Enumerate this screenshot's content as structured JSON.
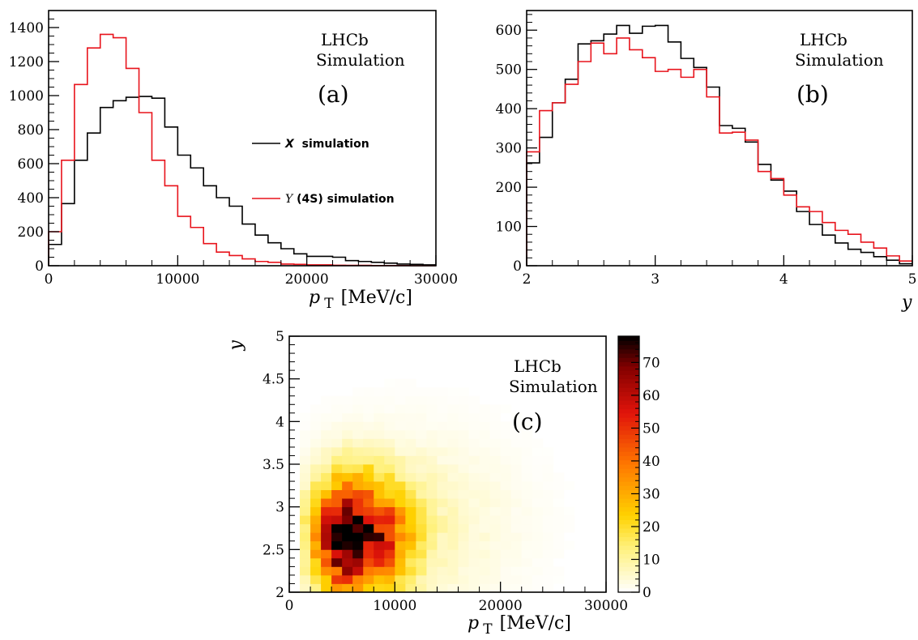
{
  "chart_data": [
    {
      "panel_id": "a",
      "type": "step-histogram",
      "xlabel": "p",
      "xlabel_sub": "T",
      "xlabel_unit": "[MeV/c]",
      "xlim": [
        0,
        30000
      ],
      "ylim": [
        0,
        1500
      ],
      "x_ticks": [
        0,
        10000,
        20000,
        30000
      ],
      "y_ticks": [
        0,
        200,
        400,
        600,
        800,
        1000,
        1200,
        1400
      ],
      "bin_edges": [
        0,
        1000,
        2000,
        3000,
        4000,
        5000,
        6000,
        7000,
        8000,
        9000,
        10000,
        11000,
        12000,
        13000,
        14000,
        15000,
        16000,
        17000,
        18000,
        19000,
        20000,
        21000,
        22000,
        23000,
        24000,
        25000,
        26000,
        27000,
        28000,
        29000,
        30000
      ],
      "annotation_lines": [
        "LHCb",
        "Simulation"
      ],
      "panel_label": "(a)",
      "series": [
        {
          "legend_symbol": "X",
          "legend_text": "simulation",
          "color": "#000000",
          "values": [
            125,
            365,
            620,
            780,
            930,
            970,
            990,
            995,
            985,
            815,
            650,
            575,
            470,
            400,
            350,
            245,
            180,
            135,
            100,
            70,
            55,
            55,
            50,
            30,
            25,
            20,
            15,
            10,
            8,
            5
          ]
        },
        {
          "legend_symbol": "Y",
          "legend_text": "(4S) simulation",
          "color": "#e8141c",
          "values": [
            200,
            620,
            1065,
            1280,
            1360,
            1340,
            1160,
            900,
            620,
            470,
            290,
            225,
            130,
            80,
            60,
            40,
            25,
            20,
            10,
            8,
            5,
            5,
            3,
            2,
            2,
            1,
            1,
            1,
            0,
            0
          ]
        }
      ],
      "legend_placement": "right-middle"
    },
    {
      "panel_id": "b",
      "type": "step-histogram",
      "xlabel": "y",
      "xlim": [
        2,
        5
      ],
      "ylim": [
        0,
        650
      ],
      "x_ticks": [
        2,
        3,
        4,
        5
      ],
      "y_ticks": [
        0,
        100,
        200,
        300,
        400,
        500,
        600
      ],
      "bin_edges": [
        2.0,
        2.1,
        2.2,
        2.3,
        2.4,
        2.5,
        2.6,
        2.7,
        2.8,
        2.9,
        3.0,
        3.1,
        3.2,
        3.3,
        3.4,
        3.5,
        3.6,
        3.7,
        3.8,
        3.9,
        4.0,
        4.1,
        4.2,
        4.3,
        4.4,
        4.5,
        4.6,
        4.7,
        4.8,
        4.9,
        5.0
      ],
      "annotation_lines": [
        "LHCb",
        "Simulation"
      ],
      "panel_label": "(b)",
      "series": [
        {
          "color": "#000000",
          "values": [
            262,
            327,
            415,
            475,
            565,
            573,
            590,
            612,
            592,
            610,
            612,
            570,
            528,
            505,
            455,
            357,
            350,
            315,
            258,
            218,
            190,
            138,
            105,
            78,
            58,
            42,
            34,
            23,
            14,
            5
          ]
        },
        {
          "color": "#e8141c",
          "values": [
            290,
            395,
            415,
            462,
            520,
            567,
            540,
            580,
            550,
            530,
            495,
            500,
            480,
            500,
            430,
            338,
            340,
            320,
            240,
            222,
            180,
            150,
            138,
            110,
            90,
            80,
            60,
            45,
            25,
            12
          ]
        }
      ]
    },
    {
      "panel_id": "c",
      "type": "heatmap",
      "xlabel": "p",
      "xlabel_sub": "T",
      "xlabel_unit": "[MeV/c]",
      "ylabel": "y",
      "xlim": [
        0,
        30000
      ],
      "ylim": [
        2,
        5
      ],
      "x_ticks": [
        0,
        10000,
        20000,
        30000
      ],
      "y_ticks": [
        2,
        2.5,
        3,
        3.5,
        4,
        4.5,
        5
      ],
      "y_tick_labels": [
        "2",
        "2.5",
        "3",
        "3.5",
        "4",
        "4.5",
        "5"
      ],
      "x_bin_width": 1000,
      "y_bin_width": 0.1,
      "z_ticks": [
        0,
        10,
        20,
        30,
        40,
        50,
        60,
        70
      ],
      "zlim": [
        0,
        78
      ],
      "annotation_lines": [
        "LHCb",
        "Simulation"
      ],
      "panel_label": "(c)",
      "density_peak": {
        "x": 5500,
        "y": 2.65,
        "z": 78
      },
      "density_spread": {
        "x_width_low": 3000,
        "x_width_high": 5000,
        "y_width": 0.65
      }
    }
  ]
}
